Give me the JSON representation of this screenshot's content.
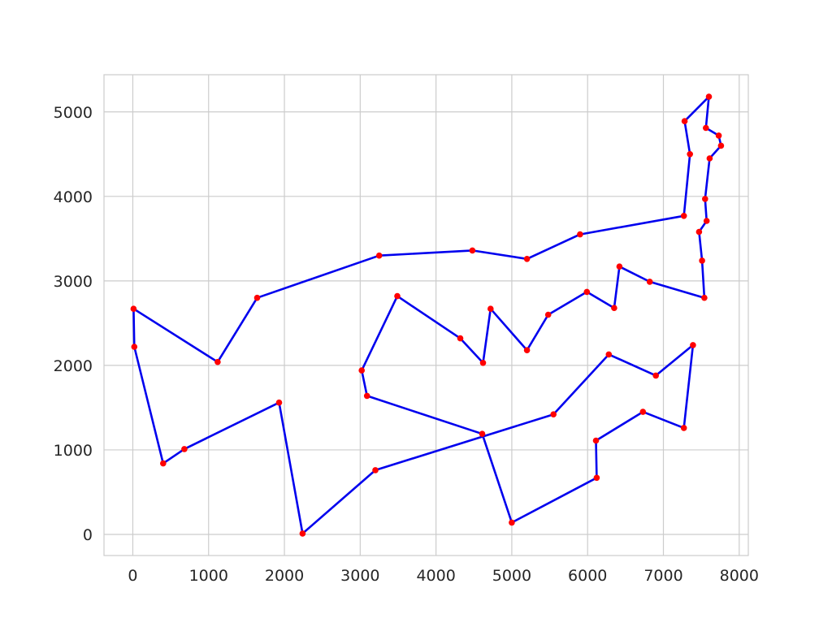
{
  "chart_data": {
    "type": "line",
    "title": "",
    "xlabel": "",
    "ylabel": "",
    "xlim": [
      -380,
      8120
    ],
    "ylim": [
      -250,
      5440
    ],
    "xticks": [
      0,
      1000,
      2000,
      3000,
      4000,
      5000,
      6000,
      7000,
      8000
    ],
    "yticks": [
      0,
      1000,
      2000,
      3000,
      4000,
      5000
    ],
    "xtick_labels": [
      "0",
      "1000",
      "2000",
      "3000",
      "4000",
      "5000",
      "6000",
      "7000",
      "8000"
    ],
    "ytick_labels": [
      "0",
      "1000",
      "2000",
      "3000",
      "4000",
      "5000"
    ],
    "grid": true,
    "colors": {
      "line": "#0000ee",
      "point": "#ff0000",
      "grid": "#cccccc",
      "spine": "#cccccc"
    },
    "series": [
      {
        "marker": "o",
        "closed": true,
        "points": [
          [
            7600,
            5180
          ],
          [
            7560,
            4810
          ],
          [
            7730,
            4720
          ],
          [
            7760,
            4600
          ],
          [
            7610,
            4450
          ],
          [
            7550,
            3970
          ],
          [
            7570,
            3710
          ],
          [
            7470,
            3580
          ],
          [
            7510,
            3240
          ],
          [
            7540,
            2800
          ],
          [
            6820,
            2990
          ],
          [
            6420,
            3170
          ],
          [
            6350,
            2680
          ],
          [
            5990,
            2870
          ],
          [
            5480,
            2600
          ],
          [
            5200,
            2180
          ],
          [
            4720,
            2670
          ],
          [
            4620,
            2030
          ],
          [
            4320,
            2320
          ],
          [
            3490,
            2820
          ],
          [
            3020,
            1940
          ],
          [
            3090,
            1640
          ],
          [
            4610,
            1190
          ],
          [
            5000,
            140
          ],
          [
            6120,
            670
          ],
          [
            6110,
            1110
          ],
          [
            6730,
            1450
          ],
          [
            7270,
            1260
          ],
          [
            7390,
            2240
          ],
          [
            6900,
            1880
          ],
          [
            6280,
            2130
          ],
          [
            5550,
            1420
          ],
          [
            3200,
            760
          ],
          [
            2240,
            10
          ],
          [
            1930,
            1560
          ],
          [
            680,
            1010
          ],
          [
            400,
            840
          ],
          [
            20,
            2220
          ],
          [
            10,
            2670
          ],
          [
            1120,
            2040
          ],
          [
            1640,
            2800
          ],
          [
            3250,
            3300
          ],
          [
            4480,
            3360
          ],
          [
            5200,
            3260
          ],
          [
            5900,
            3550
          ],
          [
            7270,
            3770
          ],
          [
            7350,
            4500
          ],
          [
            7280,
            4890
          ]
        ]
      }
    ]
  }
}
